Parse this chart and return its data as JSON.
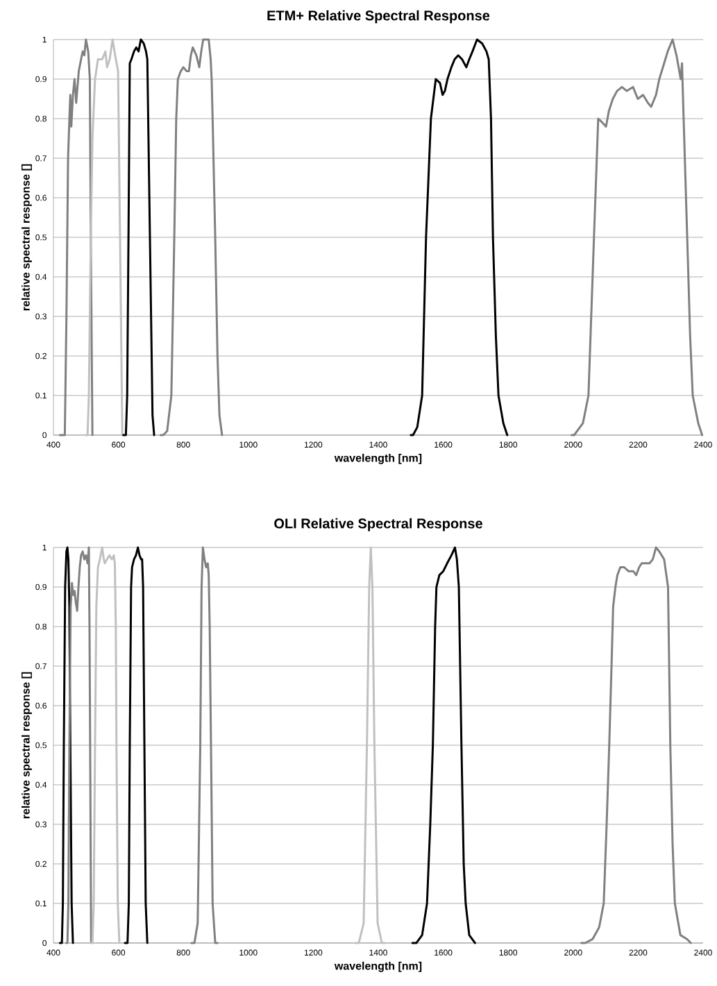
{
  "chart_data": [
    {
      "type": "line",
      "title": "ETM+ Relative Spectral Response",
      "xlabel": "wavelength [nm]",
      "ylabel": "relative spectral response []",
      "xlim": [
        400,
        2400
      ],
      "ylim": [
        0,
        1
      ],
      "xticks": [
        400,
        600,
        800,
        1000,
        1200,
        1400,
        1600,
        1800,
        2000,
        2200,
        2400
      ],
      "yticks": [
        0,
        0.1,
        0.2,
        0.3,
        0.4,
        0.5,
        0.6,
        0.7,
        0.8,
        0.9,
        1
      ],
      "grid": "y",
      "series": [
        {
          "color": "#808080",
          "x": [
            420,
            435,
            440,
            445,
            450,
            452,
            455,
            460,
            465,
            470,
            478,
            485,
            490,
            495,
            500,
            507,
            512,
            515,
            520
          ],
          "values": [
            0,
            0,
            0.3,
            0.7,
            0.82,
            0.86,
            0.78,
            0.86,
            0.9,
            0.84,
            0.92,
            0.95,
            0.97,
            0.96,
            1.0,
            0.97,
            0.9,
            0.5,
            0
          ]
        },
        {
          "color": "#c0c0c0",
          "x": [
            500,
            505,
            509,
            515,
            520,
            528,
            537,
            550,
            560,
            565,
            573,
            582,
            590,
            599,
            605,
            612
          ],
          "values": [
            0,
            0,
            0.1,
            0.5,
            0.75,
            0.9,
            0.95,
            0.95,
            0.97,
            0.93,
            0.95,
            1.0,
            0.96,
            0.92,
            0.5,
            0
          ]
        },
        {
          "color": "#000000",
          "x": [
            615,
            623,
            627,
            631,
            635,
            640,
            648,
            655,
            662,
            669,
            678,
            685,
            689,
            697,
            705,
            710
          ],
          "values": [
            0,
            0,
            0.1,
            0.5,
            0.94,
            0.95,
            0.97,
            0.98,
            0.97,
            1.0,
            0.99,
            0.97,
            0.95,
            0.5,
            0.05,
            0
          ]
        },
        {
          "color": "#808080",
          "x": [
            730,
            738,
            750,
            763,
            772,
            778,
            783,
            792,
            800,
            810,
            817,
            823,
            829,
            840,
            849,
            855,
            861,
            870,
            878,
            884,
            887,
            890,
            898,
            905,
            911,
            919
          ],
          "values": [
            0,
            0,
            0.01,
            0.1,
            0.5,
            0.8,
            0.9,
            0.92,
            0.93,
            0.92,
            0.92,
            0.96,
            0.98,
            0.96,
            0.93,
            0.97,
            1.0,
            1.0,
            1.0,
            0.95,
            0.9,
            0.8,
            0.5,
            0.2,
            0.05,
            0
          ]
        },
        {
          "color": "#000000",
          "x": [
            1500,
            1507,
            1520,
            1535,
            1547,
            1562,
            1577,
            1590,
            1598,
            1605,
            1613,
            1625,
            1635,
            1646,
            1658,
            1671,
            1680,
            1690,
            1704,
            1720,
            1733,
            1740,
            1747,
            1753,
            1762,
            1770,
            1785,
            1797
          ],
          "values": [
            0,
            0,
            0.02,
            0.1,
            0.5,
            0.8,
            0.9,
            0.89,
            0.86,
            0.87,
            0.9,
            0.93,
            0.95,
            0.96,
            0.95,
            0.93,
            0.95,
            0.97,
            1.0,
            0.99,
            0.97,
            0.95,
            0.8,
            0.5,
            0.25,
            0.1,
            0.03,
            0
          ]
        },
        {
          "color": "#808080",
          "x": [
            1995,
            2003,
            2030,
            2047,
            2064,
            2077,
            2090,
            2101,
            2110,
            2122,
            2135,
            2150,
            2165,
            2184,
            2199,
            2215,
            2230,
            2240,
            2255,
            2265,
            2280,
            2291,
            2306,
            2318,
            2331,
            2335,
            2340,
            2351,
            2360,
            2368,
            2385,
            2397
          ],
          "values": [
            0,
            0,
            0.03,
            0.1,
            0.5,
            0.8,
            0.79,
            0.78,
            0.82,
            0.85,
            0.87,
            0.88,
            0.87,
            0.88,
            0.85,
            0.86,
            0.84,
            0.83,
            0.86,
            0.9,
            0.94,
            0.97,
            1.0,
            0.96,
            0.9,
            0.94,
            0.8,
            0.5,
            0.25,
            0.1,
            0.03,
            0
          ]
        }
      ]
    },
    {
      "type": "line",
      "title": "OLI Relative Spectral Response",
      "xlabel": "wavelength [nm]",
      "ylabel": "relative spectral response []",
      "xlim": [
        400,
        2400
      ],
      "ylim": [
        0,
        1
      ],
      "xticks": [
        400,
        600,
        800,
        1000,
        1200,
        1400,
        1600,
        1800,
        2000,
        2200,
        2400
      ],
      "yticks": [
        0,
        0.1,
        0.2,
        0.3,
        0.4,
        0.5,
        0.6,
        0.7,
        0.8,
        0.9,
        1
      ],
      "grid": "y",
      "series": [
        {
          "color": "#000000",
          "x": [
            420,
            426,
            429,
            432,
            436,
            440,
            443,
            446,
            449,
            452,
            456,
            460
          ],
          "values": [
            0,
            0,
            0.1,
            0.5,
            0.9,
            0.99,
            1.0,
            0.97,
            0.85,
            0.5,
            0.1,
            0
          ]
        },
        {
          "color": "#808080",
          "x": [
            440,
            443,
            446,
            449,
            453,
            457,
            461,
            465,
            469,
            473,
            477,
            481,
            485,
            490,
            495,
            500,
            505,
            509,
            511,
            513,
            516
          ],
          "values": [
            0,
            0,
            0.1,
            0.5,
            0.85,
            0.91,
            0.88,
            0.89,
            0.86,
            0.84,
            0.9,
            0.95,
            0.98,
            0.99,
            0.97,
            0.98,
            0.96,
            1.0,
            0.8,
            0.5,
            0
          ]
        },
        {
          "color": "#c0c0c0",
          "x": [
            515,
            520,
            524,
            528,
            532,
            537,
            543,
            550,
            555,
            558,
            565,
            572,
            580,
            586,
            589,
            592,
            594,
            598,
            603
          ],
          "values": [
            0,
            0,
            0.1,
            0.5,
            0.85,
            0.95,
            0.97,
            1.0,
            0.97,
            0.96,
            0.97,
            0.98,
            0.97,
            0.98,
            0.96,
            0.8,
            0.5,
            0.1,
            0
          ]
        },
        {
          "color": "#000000",
          "x": [
            620,
            628,
            632,
            635,
            639,
            642,
            648,
            654,
            660,
            665,
            670,
            673,
            676,
            680,
            684,
            689
          ],
          "values": [
            0,
            0,
            0.1,
            0.5,
            0.9,
            0.95,
            0.97,
            0.98,
            1.0,
            0.98,
            0.97,
            0.97,
            0.9,
            0.5,
            0.1,
            0
          ]
        },
        {
          "color": "#808080",
          "x": [
            825,
            834,
            844,
            852,
            856,
            860,
            865,
            870,
            875,
            878,
            881,
            885,
            890,
            898,
            905
          ],
          "values": [
            0,
            0,
            0.05,
            0.5,
            0.9,
            1.0,
            0.97,
            0.95,
            0.96,
            0.93,
            0.8,
            0.5,
            0.1,
            0,
            0
          ]
        },
        {
          "color": "#c0c0c0",
          "x": [
            1330,
            1340,
            1355,
            1365,
            1372,
            1377,
            1382,
            1388,
            1398,
            1411,
            1420
          ],
          "values": [
            0,
            0,
            0.05,
            0.5,
            0.9,
            1.0,
            0.9,
            0.5,
            0.05,
            0,
            0
          ]
        },
        {
          "color": "#000000",
          "x": [
            1505,
            1517,
            1535,
            1550,
            1560,
            1568,
            1575,
            1579,
            1588,
            1600,
            1612,
            1625,
            1636,
            1642,
            1648,
            1656,
            1663,
            1669,
            1680,
            1698
          ],
          "values": [
            0,
            0,
            0.02,
            0.1,
            0.3,
            0.5,
            0.8,
            0.9,
            0.93,
            0.94,
            0.96,
            0.98,
            1.0,
            0.97,
            0.9,
            0.5,
            0.2,
            0.1,
            0.02,
            0
          ]
        },
        {
          "color": "#808080",
          "x": [
            2025,
            2037,
            2060,
            2080,
            2094,
            2103,
            2111,
            2118,
            2123,
            2130,
            2136,
            2145,
            2157,
            2170,
            2185,
            2194,
            2203,
            2211,
            2225,
            2235,
            2245,
            2255,
            2265,
            2280,
            2292,
            2299,
            2306,
            2313,
            2330,
            2350,
            2362
          ],
          "values": [
            0,
            0,
            0.01,
            0.04,
            0.1,
            0.3,
            0.5,
            0.7,
            0.85,
            0.9,
            0.93,
            0.95,
            0.95,
            0.94,
            0.94,
            0.93,
            0.95,
            0.96,
            0.96,
            0.96,
            0.97,
            1.0,
            0.99,
            0.97,
            0.9,
            0.5,
            0.25,
            0.1,
            0.02,
            0.01,
            0
          ]
        }
      ]
    }
  ]
}
